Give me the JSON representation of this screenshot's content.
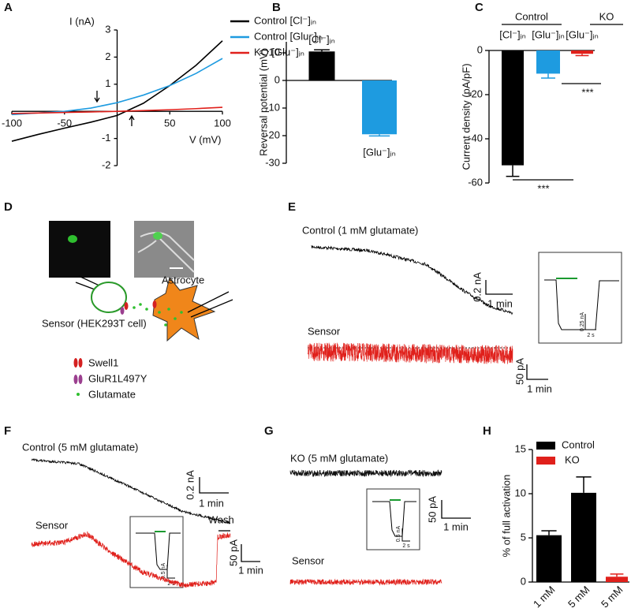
{
  "panel_labels": [
    "A",
    "B",
    "C",
    "D",
    "E",
    "F",
    "G",
    "H"
  ],
  "chart_data": [
    {
      "type": "line",
      "x_label": "V (mV)",
      "y_label": "I (nA)",
      "x": [
        -100,
        -75,
        -50,
        -25,
        0,
        25,
        50,
        75,
        100
      ],
      "xlim": [
        -100,
        100
      ],
      "ylim": [
        -2,
        3
      ],
      "xticks": [
        -100,
        -50,
        50,
        100
      ],
      "yticks": [
        -2,
        -1,
        1,
        2,
        3
      ],
      "legend": "upper right",
      "series": [
        {
          "name": "Control [Cl⁻]ᵢₙ",
          "color": "#000000",
          "values": [
            -1.1,
            -0.85,
            -0.62,
            -0.4,
            -0.15,
            0.3,
            0.95,
            1.7,
            2.6
          ]
        },
        {
          "name": "Control [Glu⁻]ᵢₙ",
          "color": "#1e9be0",
          "values": [
            -0.12,
            -0.06,
            0.0,
            0.12,
            0.32,
            0.6,
            0.95,
            1.4,
            1.95
          ]
        },
        {
          "name": "KO [Glu⁻]ᵢₙ",
          "color": "#e0201b",
          "values": [
            -0.08,
            -0.06,
            -0.04,
            -0.02,
            0.0,
            0.03,
            0.06,
            0.1,
            0.15
          ]
        }
      ]
    },
    {
      "type": "bar",
      "y_label": "Reversal potential (mV)",
      "categories": [
        "[Cl⁻]ᵢₙ",
        "[Glu⁻]ᵢₙ"
      ],
      "values": [
        10.5,
        -19.5
      ],
      "errors": [
        0.6,
        0.6
      ],
      "colors": [
        "#000000",
        "#1e9be0"
      ],
      "ylim": [
        -30,
        14
      ],
      "yticks": [
        -30,
        -20,
        -10,
        0,
        10
      ]
    },
    {
      "type": "bar",
      "y_label": "Current density (pA/pF)",
      "group_labels": [
        "Control",
        "KO"
      ],
      "categories": [
        "[Cl⁻]ᵢₙ",
        "[Glu⁻]ᵢₙ",
        "[Glu⁻]ᵢₙ"
      ],
      "values": [
        -52,
        -10.5,
        -1.5
      ],
      "errors": [
        5,
        2,
        0.8
      ],
      "colors": [
        "#000000",
        "#1e9be0",
        "#e0201b"
      ],
      "annotations": [
        "***",
        "***"
      ],
      "ylim": [
        -60,
        0
      ],
      "yticks": [
        -60,
        -40,
        -20,
        0
      ]
    },
    {
      "type": "bar",
      "y_label": "% of full activation",
      "categories": [
        "1 mM",
        "5 mM",
        "5 mM"
      ],
      "ylim": [
        0,
        15
      ],
      "yticks": [
        0,
        5,
        10,
        15
      ],
      "legend": "upper left",
      "series": [
        {
          "name": "Control",
          "color": "#000000",
          "values": [
            5.3,
            10.1,
            null
          ],
          "errors": [
            0.5,
            1.8,
            null
          ]
        },
        {
          "name": "KO",
          "color": "#e0201b",
          "values": [
            null,
            null,
            0.6
          ],
          "errors": [
            null,
            null,
            0.3
          ]
        }
      ]
    }
  ],
  "panels": {
    "D": {
      "astrocyte": "Astrocyte",
      "sensor": "Sensor (HEK293T cell)",
      "legend": [
        "Swell1",
        "GluR1L497Y",
        "Glutamate"
      ]
    },
    "E": {
      "title": "Control (1 mM glutamate)",
      "scale_i": "0.2 nA",
      "scale_t": "1 min",
      "sensor": "Sensor",
      "sensor_scale_i": "50 pA",
      "sensor_scale_t": "1 min",
      "inset_i": "0.25 nA",
      "inset_t": "2 s"
    },
    "F": {
      "title": "Control (5 mM glutamate)",
      "scale_i": "0.2 nA",
      "scale_t": "1 min",
      "sensor": "Sensor",
      "wash": "Wash",
      "sensor_scale_i": "50 pA",
      "sensor_scale_t": "1 min",
      "inset_i": "0.5 nA",
      "inset_t": "2 s"
    },
    "G": {
      "title": "KO (5 mM glutamate)",
      "sensor": "Sensor",
      "sensor_scale_i": "50 pA",
      "sensor_scale_t": "1 min",
      "inset_i": "0.5 nA",
      "inset_t": "2 s"
    }
  }
}
